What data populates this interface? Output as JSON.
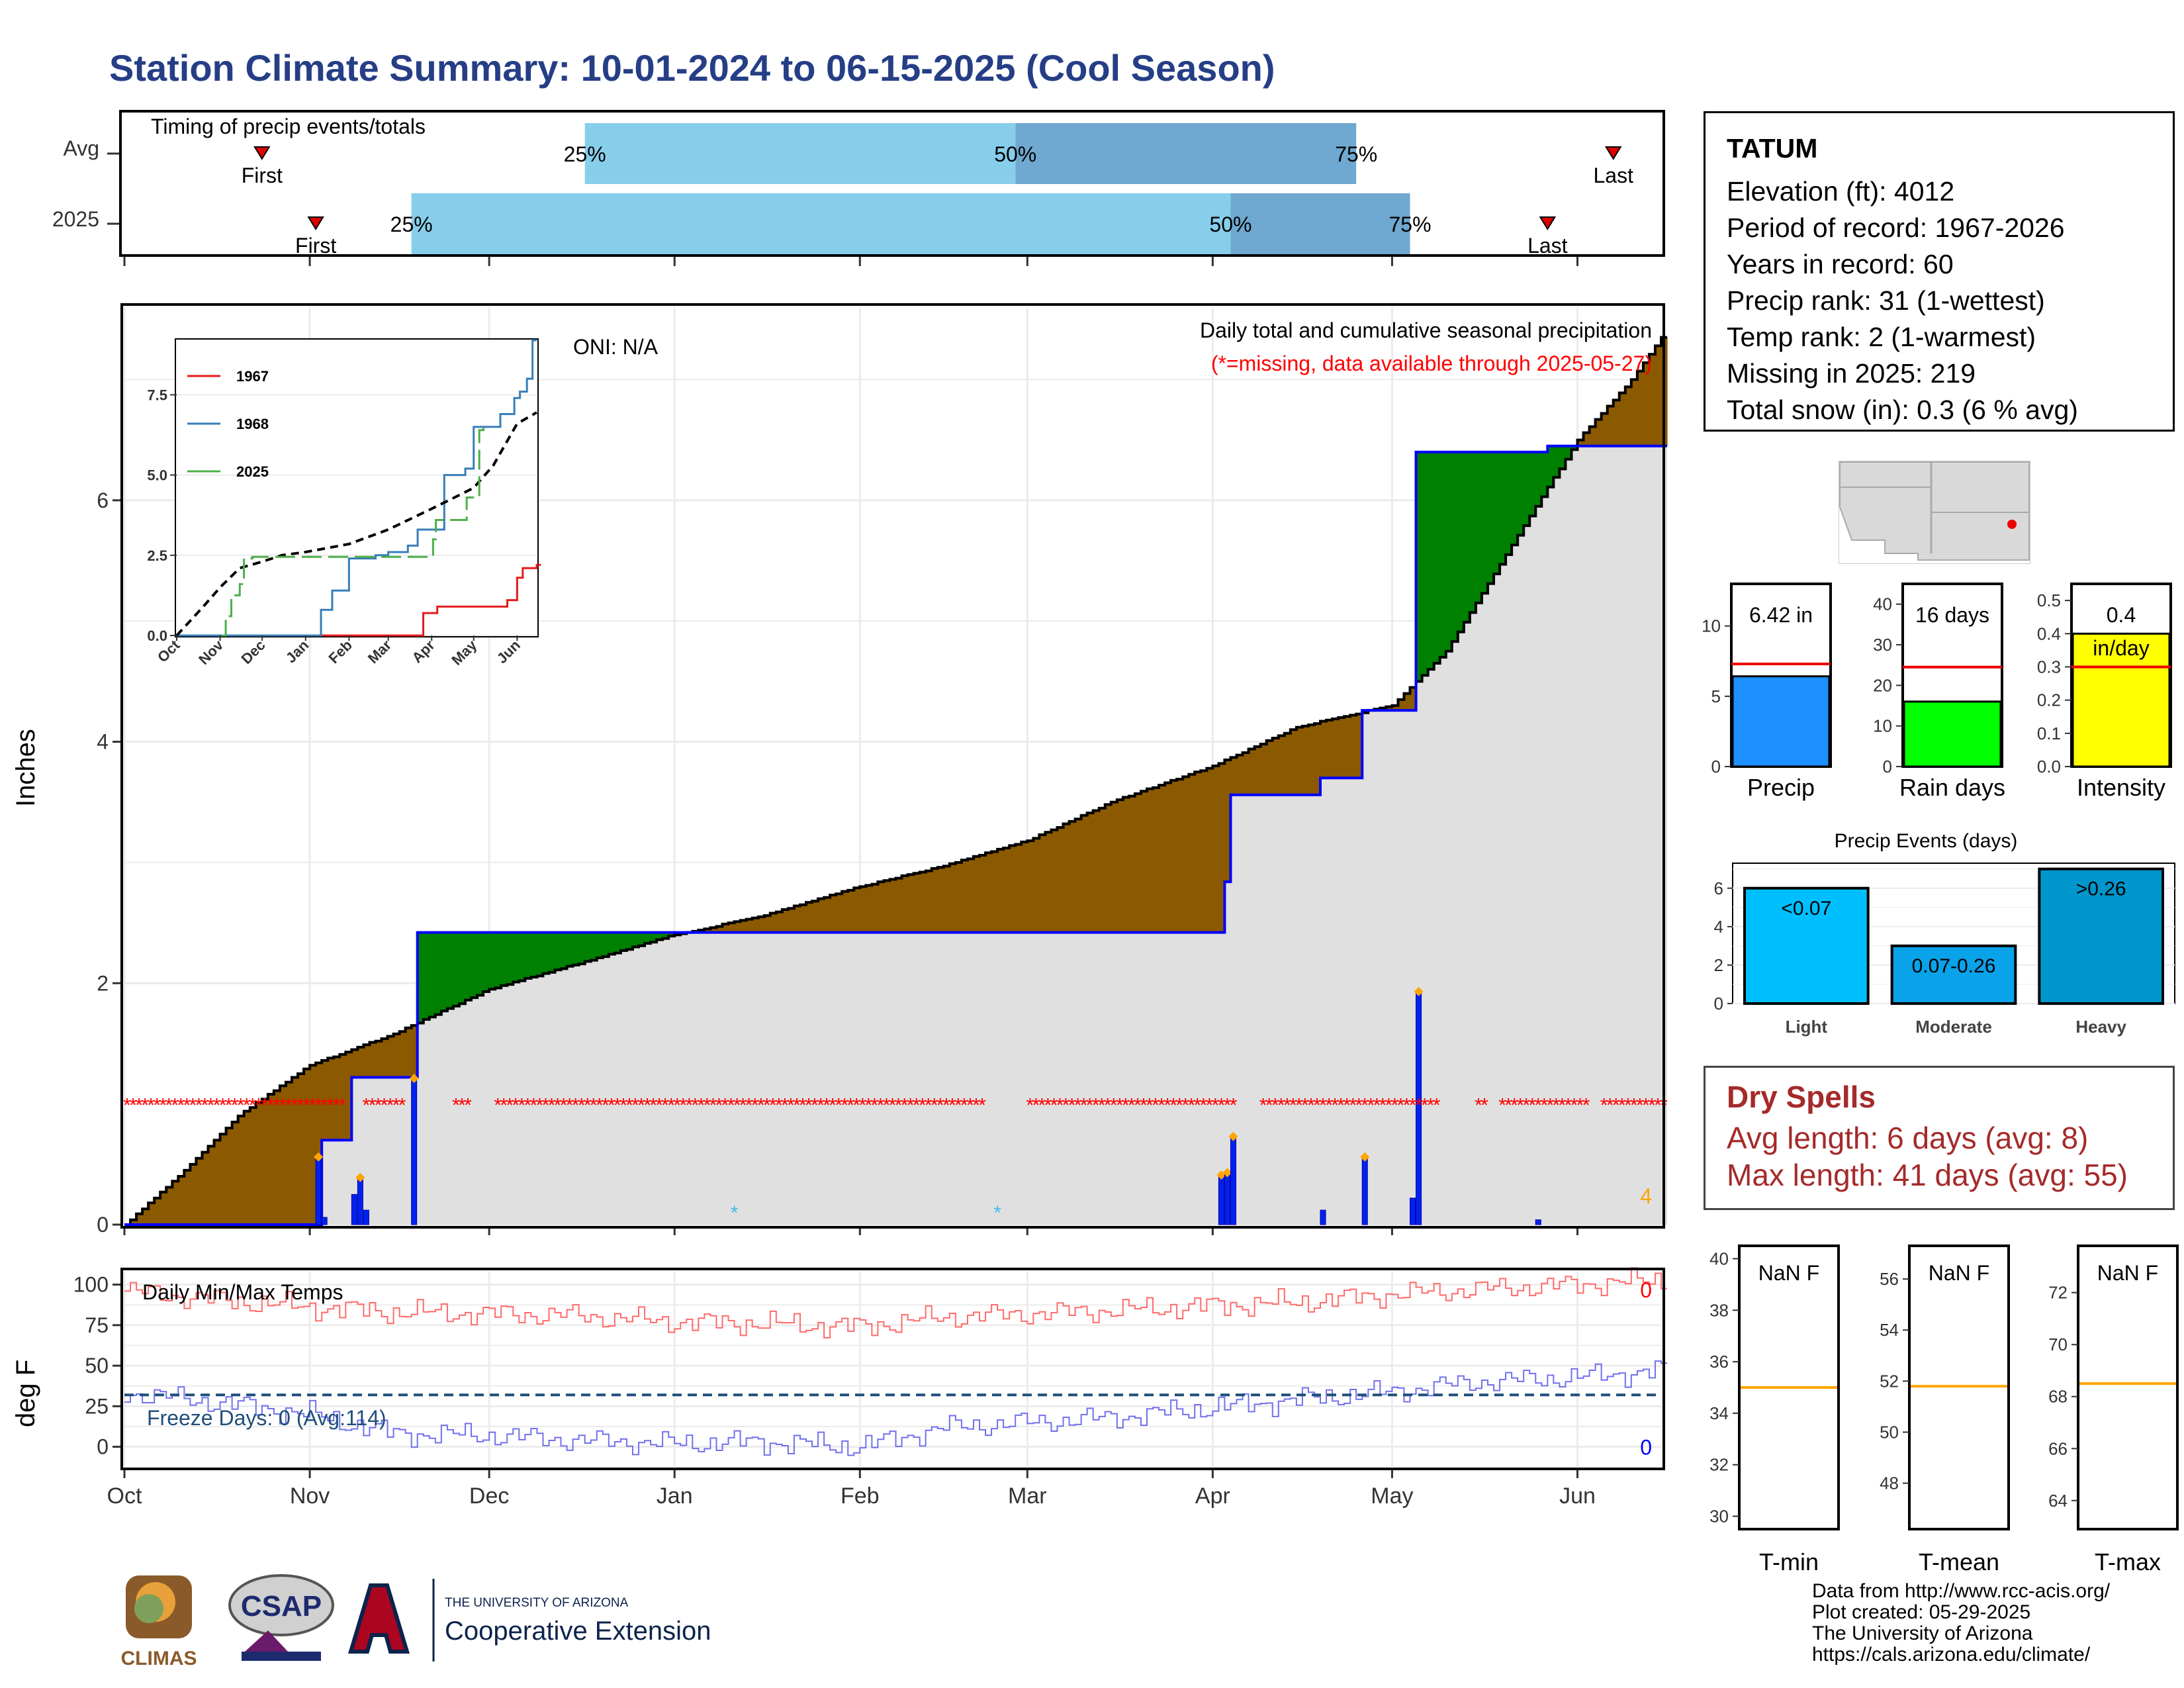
{
  "title": "Station Climate Summary: 10-01-2024 to 06-15-2025 (Cool Season)",
  "timing": {
    "label": "Timing of precip events/totals",
    "rows": [
      "Avg",
      "2025"
    ],
    "avg": {
      "first": "2024-10-24",
      "p25": "2024-12-17",
      "p50": "2025-02-27",
      "p75": "2025-04-25",
      "last": "2025-06-07"
    },
    "y2025": {
      "first": "2024-11-02",
      "p25": "2024-11-18",
      "p50": "2025-04-04",
      "p75": "2025-05-04",
      "last": "2025-05-27"
    },
    "labels": {
      "first": "First",
      "last": "Last",
      "p25": "25%",
      "p50": "50%",
      "p75": "75%"
    },
    "colors": {
      "light": "#87ceeb",
      "dark": "#6fa8d0",
      "marker": "#dd0000"
    }
  },
  "station": {
    "name": "TATUM",
    "lines": [
      "Elevation (ft): 4012",
      "Period of record: 1967-2026",
      "Years in record: 60",
      "Precip rank: 31 (1-wettest)",
      "Temp rank: 2 (1-warmest)",
      "Missing in 2025: 219",
      "Total snow (in): 0.3 (6 % avg)"
    ]
  },
  "main": {
    "ylabel": "Inches",
    "oni": "ONI: N/A",
    "caption1": "Daily total and cumulative seasonal precipitation",
    "caption2": "(*=missing, data available through 2025-05-27)",
    "corner_count": "4",
    "colors": {
      "above": "#8b5a00",
      "below": "#008000",
      "current": "#0000ff",
      "missing": "#ff0000",
      "bars": "#0022ee",
      "diamond": "#ffa500"
    }
  },
  "months": [
    "Oct",
    "Nov",
    "Dec",
    "Jan",
    "Feb",
    "Mar",
    "Apr",
    "May",
    "Jun"
  ],
  "inset": {
    "legend": [
      "1967",
      "1968",
      "2025"
    ],
    "months": [
      "Oct",
      "Nov",
      "Dec",
      "Jan",
      "Feb",
      "Mar",
      "Apr",
      "May",
      "Jun"
    ]
  },
  "temps": {
    "label": "Daily Min/Max Temps",
    "ylabel": "deg F",
    "freeze": "Freeze Days: 0 (Avg:114)",
    "max_count": "0",
    "min_count": "0",
    "colors": {
      "max": "#ff6a6a",
      "min": "#7070ee",
      "freeze": "#1f4e79"
    }
  },
  "minibars": {
    "precip": {
      "label": "Precip",
      "value_label": "6.42 in",
      "value": 6.42,
      "avg": 7.3,
      "ylim": [
        0,
        13
      ],
      "ticks": [
        0,
        5,
        10
      ],
      "color": "#1e90ff"
    },
    "rain": {
      "label": "Rain days",
      "value_label": "16 days",
      "value": 16,
      "avg": 24.5,
      "ylim": [
        0,
        45
      ],
      "ticks": [
        0,
        10,
        20,
        30,
        40
      ],
      "color": "#00ff00"
    },
    "intensity": {
      "label": "Intensity",
      "value_label": "0.4",
      "unit": "in/day",
      "value": 0.4,
      "avg": 0.3,
      "ylim": [
        0,
        0.55
      ],
      "ticks": [
        "0.0",
        "0.1",
        "0.2",
        "0.3",
        "0.4",
        "0.5"
      ],
      "color": "#ffff00"
    }
  },
  "events": {
    "title": "Precip Events (days)",
    "ticks": [
      0,
      2,
      4,
      6
    ],
    "bars": [
      {
        "label": "Light",
        "text": "<0.07",
        "value": 6,
        "color": "#00bfff"
      },
      {
        "label": "Moderate",
        "text": "0.07-0.26",
        "value": 3,
        "color": "#0aa2e8"
      },
      {
        "label": "Heavy",
        "text": ">0.26",
        "value": 7,
        "color": "#0096cc"
      }
    ]
  },
  "dry": {
    "title": "Dry Spells",
    "avg": "Avg length: 6 days (avg: 8)",
    "max": "Max length: 41 days (avg: 55)"
  },
  "tempbars": [
    {
      "label": "T-min",
      "value": "NaN F",
      "avg": 35,
      "ticks": [
        30,
        32,
        34,
        36,
        38,
        40
      ],
      "ylim": [
        29.5,
        40.5
      ]
    },
    {
      "label": "T-mean",
      "value": "NaN F",
      "avg": 51.8,
      "ticks": [
        48,
        50,
        52,
        54,
        56
      ],
      "ylim": [
        46.2,
        57.3
      ]
    },
    {
      "label": "T-max",
      "value": "NaN F",
      "avg": 68.5,
      "ticks": [
        64,
        66,
        68,
        70,
        72
      ],
      "ylim": [
        62.9,
        73.8
      ]
    }
  ],
  "credits": [
    "Data from http://www.rcc-acis.org/",
    "Plot created: 05-29-2025",
    "The University of Arizona",
    "https://cals.arizona.edu/climate/"
  ],
  "logos": {
    "climas": "CLIMAS",
    "csap": "CSAP",
    "ua_small": "THE UNIVERSITY OF ARIZONA",
    "ua_big": "Cooperative Extension"
  },
  "chart_data": [
    {
      "type": "area",
      "title": "Daily total and cumulative seasonal precipitation",
      "ylabel": "Inches",
      "x_domain": [
        "2024-10-01",
        "2025-06-15"
      ],
      "ylim": [
        0,
        7.6
      ],
      "yticks": [
        0,
        2,
        4,
        6
      ],
      "series": [
        {
          "name": "avg",
          "x": [
            "2024-10-01",
            "2024-10-10",
            "2024-10-20",
            "2024-11-01",
            "2024-11-15",
            "2024-12-01",
            "2024-12-15",
            "2025-01-01",
            "2025-01-15",
            "2025-02-01",
            "2025-02-15",
            "2025-03-01",
            "2025-03-15",
            "2025-04-01",
            "2025-04-15",
            "2025-05-01",
            "2025-05-10",
            "2025-05-15",
            "2025-05-25",
            "2025-06-01",
            "2025-06-10",
            "2025-06-15"
          ],
          "y": [
            0,
            0.4,
            0.9,
            1.32,
            1.58,
            1.95,
            2.15,
            2.4,
            2.55,
            2.8,
            2.97,
            3.18,
            3.5,
            3.8,
            4.12,
            4.3,
            4.75,
            5.15,
            5.95,
            6.5,
            7.0,
            7.35
          ]
        },
        {
          "name": "2025",
          "x": [
            "2024-10-01",
            "2024-11-02",
            "2024-11-03",
            "2024-11-08",
            "2024-11-18",
            "2024-11-19",
            "2025-04-02",
            "2025-04-03",
            "2025-04-04",
            "2025-04-19",
            "2025-04-26",
            "2025-05-04",
            "2025-05-05",
            "2025-05-27",
            "2025-06-02",
            "2025-06-15"
          ],
          "y": [
            0,
            0,
            0.7,
            1.22,
            1.22,
            2.42,
            2.42,
            2.84,
            3.56,
            3.7,
            4.26,
            4.26,
            6.4,
            6.45,
            6.45,
            6.45
          ]
        },
        {
          "name": "daily",
          "x": [
            "2024-11-02",
            "2024-11-03",
            "2024-11-08",
            "2024-11-09",
            "2024-11-10",
            "2024-11-18",
            "2025-04-02",
            "2025-04-03",
            "2025-04-04",
            "2025-04-19",
            "2025-04-26",
            "2025-05-04",
            "2025-05-05",
            "2025-05-25"
          ],
          "y": [
            0.55,
            0.06,
            0.25,
            0.38,
            0.12,
            1.2,
            0.4,
            0.42,
            0.72,
            0.12,
            0.55,
            0.22,
            1.92,
            0.04
          ]
        }
      ]
    },
    {
      "type": "line",
      "title": "inset",
      "ylim": [
        0,
        9.2
      ],
      "yticks": [
        0.0,
        2.5,
        5.0,
        7.5
      ],
      "series": [
        {
          "name": "1967",
          "x": [
            "2024-10-01",
            "2025-03-23",
            "2025-03-26",
            "2025-04-05",
            "2025-05-25",
            "2025-06-01",
            "2025-06-05",
            "2025-06-15"
          ],
          "y": [
            0,
            0,
            0.7,
            0.9,
            1.1,
            1.8,
            2.1,
            2.2
          ]
        },
        {
          "name": "1968",
          "x": [
            "2024-10-01",
            "2025-01-10",
            "2025-01-12",
            "2025-01-20",
            "2025-02-01",
            "2025-02-20",
            "2025-03-01",
            "2025-03-15",
            "2025-03-22",
            "2025-04-10",
            "2025-04-25",
            "2025-05-01",
            "2025-05-20",
            "2025-05-30",
            "2025-06-03",
            "2025-06-08",
            "2025-06-12"
          ],
          "y": [
            0,
            0,
            0.8,
            1.4,
            2.4,
            2.5,
            2.6,
            2.8,
            3.3,
            5.0,
            5.2,
            6.5,
            6.9,
            7.4,
            7.6,
            8.0,
            9.2
          ]
        },
        {
          "name": "avg",
          "x": [
            "2024-10-01",
            "2024-10-20",
            "2024-11-01",
            "2024-11-15",
            "2024-12-01",
            "2024-12-15",
            "2025-01-01",
            "2025-02-01",
            "2025-03-01",
            "2025-04-01",
            "2025-04-15",
            "2025-05-01",
            "2025-05-15",
            "2025-06-01",
            "2025-06-15"
          ],
          "y": [
            0,
            0.9,
            1.5,
            2.1,
            2.3,
            2.5,
            2.6,
            2.85,
            3.3,
            3.95,
            4.25,
            4.6,
            5.3,
            6.6,
            6.95
          ]
        },
        {
          "name": "2025",
          "x": [
            "2024-11-02",
            "2024-11-05",
            "2024-11-09",
            "2024-11-15",
            "2024-11-18",
            "2024-11-24",
            "2025-04-02",
            "2025-04-04",
            "2025-04-26",
            "2025-05-05",
            "2025-05-08"
          ],
          "y": [
            0,
            0.6,
            1.25,
            1.6,
            2.4,
            2.45,
            3.0,
            3.6,
            4.3,
            6.4,
            6.5
          ]
        }
      ]
    },
    {
      "type": "line",
      "title": "Daily Min/Max Temps",
      "ylabel": "deg F",
      "ylim": [
        -12,
        108
      ],
      "yticks": [
        0,
        25,
        50,
        75,
        100
      ],
      "series": [
        {
          "name": "max",
          "x": [
            "2024-10-01",
            "2024-10-15",
            "2024-11-01",
            "2024-11-15",
            "2024-12-01",
            "2024-12-15",
            "2025-01-01",
            "2025-01-15",
            "2025-02-01",
            "2025-02-15",
            "2025-03-01",
            "2025-03-15",
            "2025-04-01",
            "2025-04-15",
            "2025-05-01",
            "2025-05-15",
            "2025-06-01",
            "2025-06-15"
          ],
          "y": [
            96,
            91,
            86,
            83,
            82,
            81,
            77,
            76,
            74,
            80,
            82,
            84,
            87,
            89,
            94,
            97,
            100,
            103
          ]
        },
        {
          "name": "min",
          "x": [
            "2024-10-01",
            "2024-10-15",
            "2024-11-01",
            "2024-11-15",
            "2024-12-01",
            "2024-12-15",
            "2025-01-01",
            "2025-01-15",
            "2025-02-01",
            "2025-02-15",
            "2025-03-01",
            "2025-03-15",
            "2025-04-01",
            "2025-04-15",
            "2025-05-01",
            "2025-05-15",
            "2025-06-01",
            "2025-06-15"
          ],
          "y": [
            33,
            28,
            20,
            8,
            7,
            4,
            2,
            3,
            0,
            12,
            15,
            18,
            24,
            29,
            34,
            40,
            43,
            47
          ]
        },
        {
          "name": "freeze",
          "x": [
            "2024-10-01",
            "2025-06-15"
          ],
          "y": [
            32,
            32
          ]
        }
      ]
    },
    {
      "type": "bar",
      "title": "Precip Events (days)",
      "categories": [
        "Light",
        "Moderate",
        "Heavy"
      ],
      "values": [
        6,
        3,
        7
      ],
      "ylim": [
        0,
        7.3
      ]
    }
  ]
}
